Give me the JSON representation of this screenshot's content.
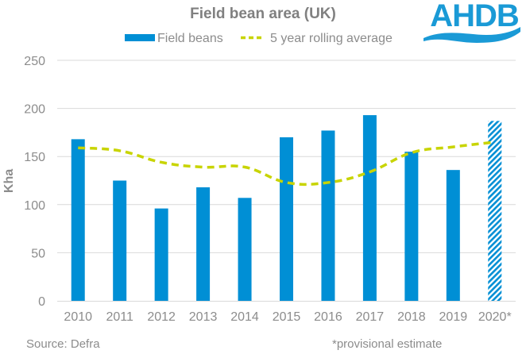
{
  "logo": {
    "text": "AHDB",
    "color": "#1a9ad6"
  },
  "footer": {
    "source": "Source: Defra",
    "note": "*provisional estimate"
  },
  "chart_data": {
    "type": "bar",
    "title": "Field bean area (UK)",
    "xlabel": "",
    "ylabel": "Kha",
    "ylim": [
      0,
      250
    ],
    "yticks": [
      0,
      50,
      100,
      150,
      200,
      250
    ],
    "grid": true,
    "legend_position": "top-center",
    "categories": [
      "2010",
      "2011",
      "2012",
      "2013",
      "2014",
      "2015",
      "2016",
      "2017",
      "2018",
      "2019",
      "2020*"
    ],
    "series": [
      {
        "name": "Field beans",
        "type": "bar",
        "color": "#008fd5",
        "values": [
          168,
          125,
          96,
          118,
          107,
          170,
          177,
          193,
          155,
          136,
          187
        ],
        "hatched_categories": [
          "2020*"
        ]
      },
      {
        "name": "5 year rolling average",
        "type": "line",
        "style": "dashed",
        "color": "#c8d400",
        "values": [
          159,
          156,
          144,
          139,
          139,
          123,
          123,
          134,
          154,
          160,
          165
        ]
      }
    ]
  }
}
